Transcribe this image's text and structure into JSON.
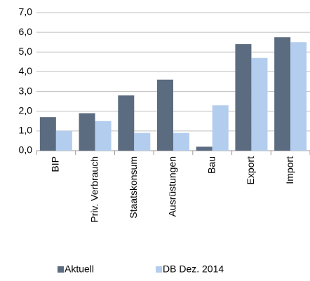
{
  "chart_data": {
    "type": "bar",
    "categories": [
      "BIP",
      "Priv. Verbrauch",
      "Staatskonsum",
      "Ausrüstungen",
      "Bau",
      "Export",
      "Import"
    ],
    "series": [
      {
        "name": "Aktuell",
        "color": "#5b6b80",
        "values": [
          1.7,
          1.9,
          2.8,
          3.6,
          0.2,
          5.4,
          5.75
        ]
      },
      {
        "name": "DB Dez. 2014",
        "color": "#b3cdee",
        "values": [
          1.0,
          1.5,
          0.9,
          0.9,
          2.3,
          4.7,
          5.5
        ]
      }
    ],
    "ylim": [
      0,
      7
    ],
    "yticks": [
      {
        "value": 0,
        "label": "0,0"
      },
      {
        "value": 1,
        "label": "1,0"
      },
      {
        "value": 2,
        "label": "2,0"
      },
      {
        "value": 3,
        "label": "3,0"
      },
      {
        "value": 4,
        "label": "4,0"
      },
      {
        "value": 5,
        "label": "5,0"
      },
      {
        "value": 6,
        "label": "6,0"
      },
      {
        "value": 7,
        "label": "7,0"
      }
    ],
    "grid": true
  }
}
